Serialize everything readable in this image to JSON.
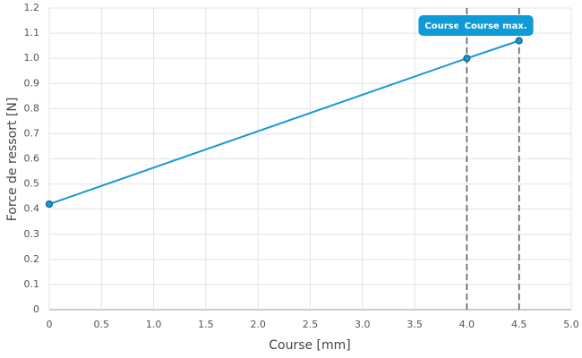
{
  "chart_data": {
    "type": "line",
    "x_label": "Course [mm]",
    "y_label": "Force de ressort [N]",
    "x": [
      0,
      4.0,
      4.5
    ],
    "series": [
      {
        "color": "#1a97d5",
        "values": [
          0.42,
          1.0,
          1.07
        ]
      }
    ],
    "xlim": [
      0,
      5
    ],
    "ylim": [
      0,
      1.2
    ],
    "xticks": [
      0,
      0.5,
      {
        "value": 1,
        "label": "1.0"
      },
      1.5,
      {
        "value": 2,
        "label": "2.0"
      },
      2.5,
      {
        "value": 3,
        "label": "3.0"
      },
      3.5,
      {
        "value": 4,
        "label": "4.0"
      },
      4.5,
      {
        "value": 5,
        "label": "5.0"
      }
    ],
    "yticks": [
      0,
      0.1,
      0.2,
      0.3,
      0.4,
      0.5,
      0.6,
      0.7,
      0.8,
      0.9,
      {
        "value": 1,
        "label": "1.0"
      },
      1.1,
      1.2
    ],
    "grid": true,
    "annotations": [
      {
        "x": 4.0,
        "label": "Course de t"
      },
      {
        "x": 4.5,
        "label": "Course max."
      }
    ]
  }
}
